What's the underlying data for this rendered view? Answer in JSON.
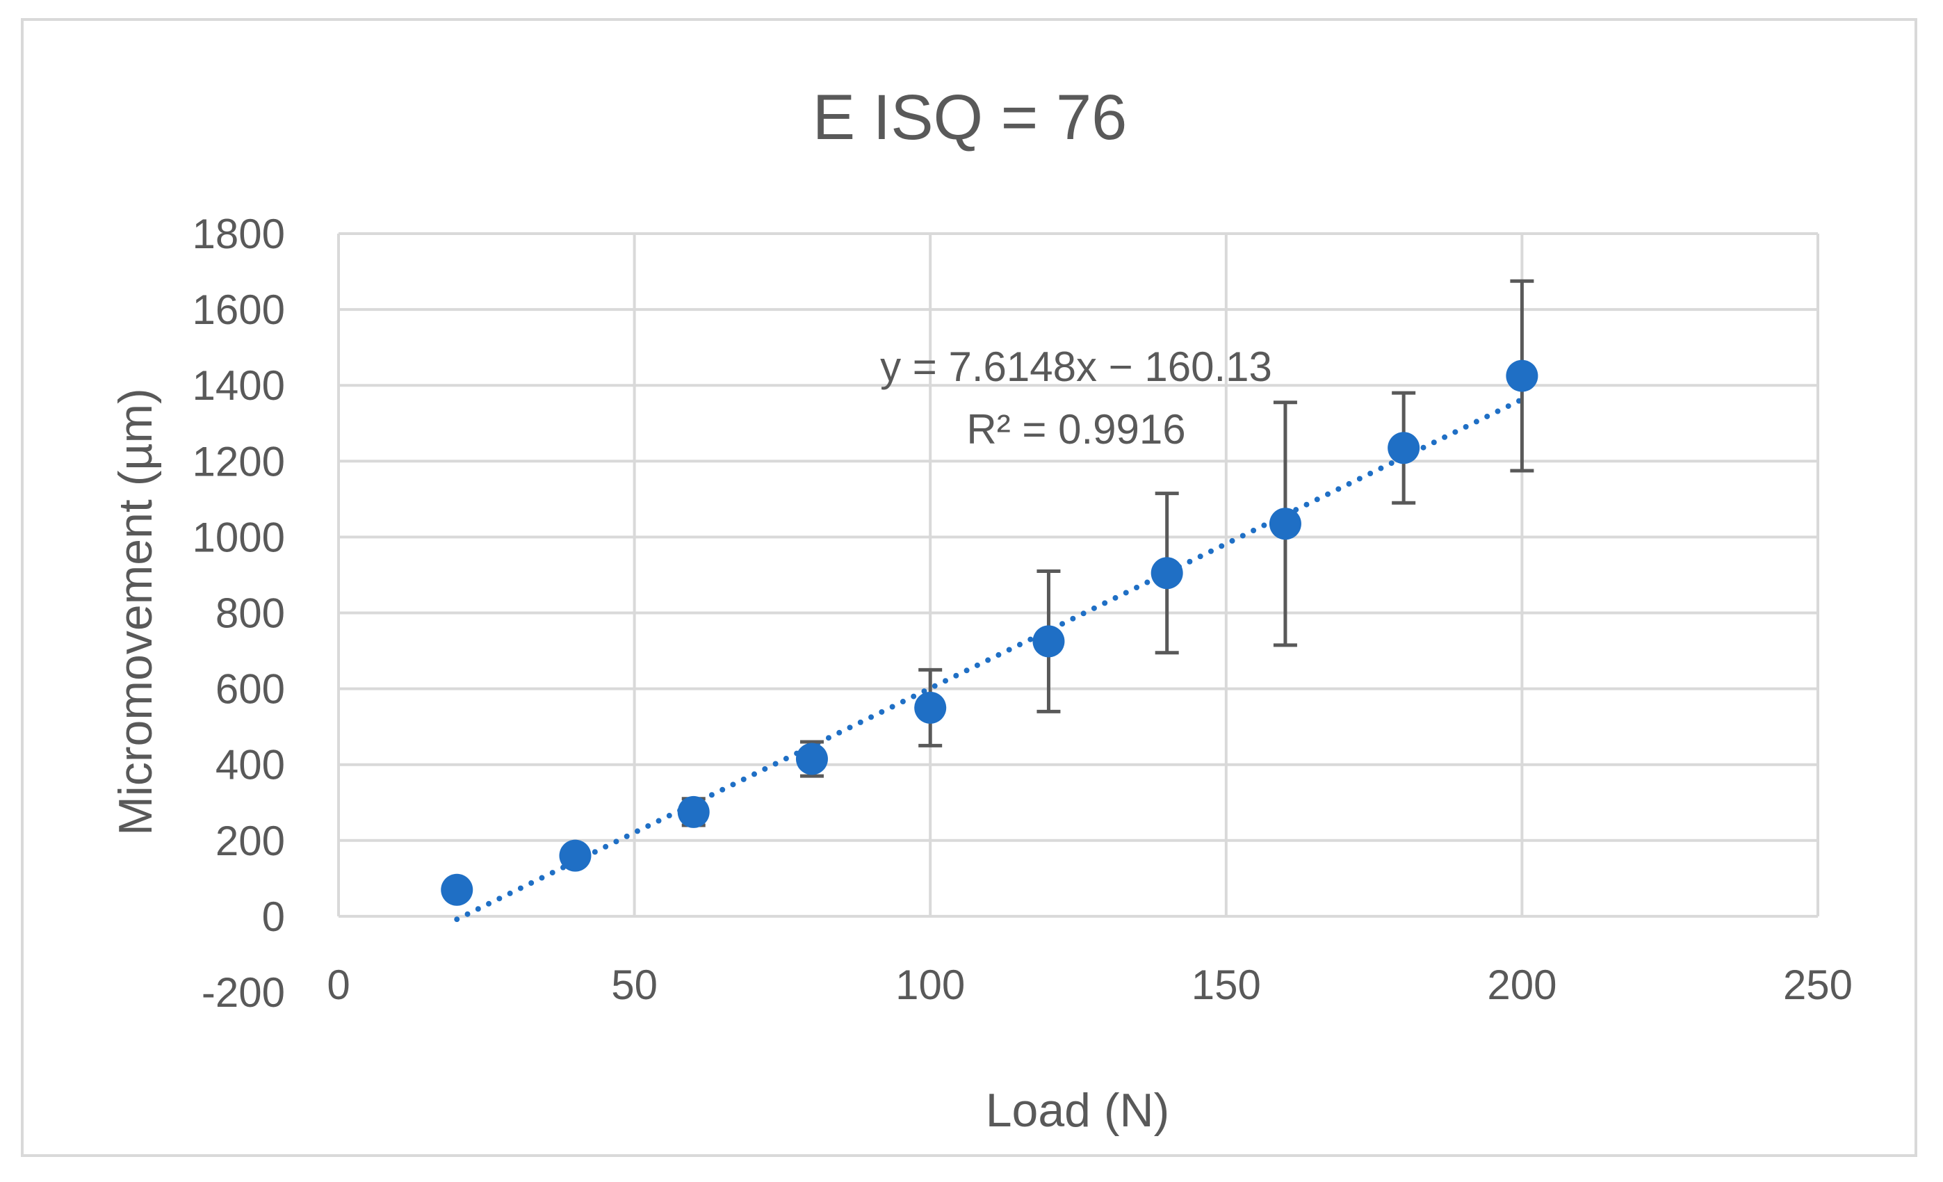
{
  "chart_data": {
    "type": "scatter",
    "title": "E  ISQ = 76",
    "xlabel": "Load (N)",
    "ylabel": "Micromovement (µm)",
    "xlim": [
      0,
      250
    ],
    "ylim": [
      -200,
      1800
    ],
    "x_ticks": [
      0,
      50,
      100,
      150,
      200,
      250
    ],
    "y_ticks": [
      -200,
      0,
      200,
      400,
      600,
      800,
      1000,
      1200,
      1400,
      1600,
      1800
    ],
    "grid": true,
    "series": [
      {
        "name": "Micromovement",
        "color": "#1f6fc5",
        "x": [
          20,
          40,
          60,
          80,
          100,
          120,
          140,
          160,
          180,
          200
        ],
        "y": [
          70,
          160,
          275,
          415,
          550,
          725,
          905,
          1035,
          1235,
          1425
        ],
        "error": [
          0,
          0,
          35,
          45,
          100,
          185,
          210,
          320,
          145,
          250
        ]
      }
    ],
    "trendline": {
      "type": "linear",
      "slope": 7.6148,
      "intercept": -160.13,
      "x_range": [
        20,
        200
      ],
      "style": "dotted",
      "color": "#1f6fc5",
      "equation_label": "y = 7.6148x − 160.13",
      "r2_label": "R² = 0.9916"
    },
    "error_bar_color": "#595959"
  }
}
